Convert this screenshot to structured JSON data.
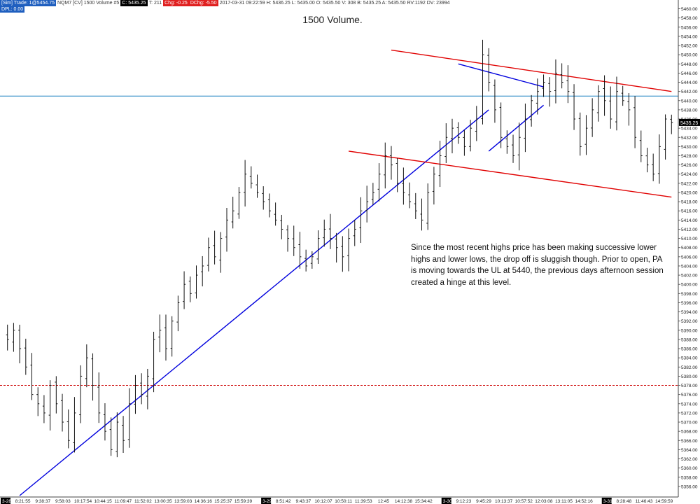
{
  "header": {
    "segments": [
      {
        "text": "[Sim] Trade: 1@5454.75",
        "color": "blue"
      },
      {
        "text": "NQM7 [CV]  1500 Volume  #5",
        "color": "white"
      },
      {
        "text": "C: 5435.25",
        "color": "black"
      },
      {
        "text": "T: 211",
        "color": "white"
      },
      {
        "text": "Chg: -0.25",
        "color": "red"
      },
      {
        "text": "DChg: -5.50",
        "color": "red"
      },
      {
        "text": "2017-03-31 09:22:59 H: 5436.25 L: 5435.00 O: 5435.50 V: 308 B: 5435.25 A: 5435.50 RV:1192 DV: 23994",
        "color": "white"
      }
    ],
    "line2": "DPL: 0.00"
  },
  "title": "1500 Volume.",
  "annotation": "Since the most recent highs price has been making successive lower highs and lower lows, the drop off is sluggish though.  Prior to open, PA is moving towards the UL at 5440, the previous days afternoon session created a hinge at this level.",
  "colors": {
    "up": "#111111",
    "trendline": "#0000dd",
    "channel": "#e00000",
    "level": "#1a80c0",
    "stop": "#cc0000"
  },
  "chart_data": {
    "type": "ohlc",
    "symbol": "NQM7",
    "ylim": [
      5354,
      5461
    ],
    "y_ticks": [
      5356,
      5358,
      5360,
      5362,
      5364,
      5366,
      5368,
      5370,
      5372,
      5374,
      5376,
      5378,
      5380,
      5382,
      5384,
      5386,
      5388,
      5390,
      5392,
      5394,
      5396,
      5398,
      5400,
      5402,
      5404,
      5406,
      5408,
      5410,
      5412,
      5414,
      5416,
      5418,
      5420,
      5422,
      5424,
      5426,
      5428,
      5430,
      5432,
      5434,
      5436,
      5438,
      5440,
      5442,
      5444,
      5446,
      5448,
      5450,
      5452,
      5454,
      5456,
      5458,
      5460
    ],
    "last_price": "5435.25",
    "x_labels": [
      "3-28",
      "8:21:55",
      "9:38:37",
      "9:58:03",
      "10:17:54",
      "10:44:15",
      "11:09:47",
      "11:52:02",
      "13:00:35",
      "13:59:03",
      "14:36:16",
      "15:25:37",
      "15:59:39",
      "3-29",
      "8:51:42",
      "9:43:37",
      "10:12:07",
      "10:50:11",
      "11:39:53",
      "12:45",
      "14:12:38",
      "15:34:42",
      "3-30",
      "9:12:23",
      "9:45:29",
      "10:13:37",
      "10:57:52",
      "12:03:08",
      "13:11:05",
      "14:52:16",
      "3-31",
      "8:28:48",
      "11:46:43",
      "14:59:59"
    ],
    "date_markers": [
      "3-28",
      "3-29",
      "3-30",
      "3-31"
    ],
    "closes": [
      5388,
      5390,
      5386,
      5382,
      5376,
      5374,
      5372,
      5378,
      5374,
      5370,
      5366,
      5372,
      5380,
      5384,
      5378,
      5372,
      5368,
      5364,
      5370,
      5366,
      5374,
      5378,
      5376,
      5380,
      5388,
      5390,
      5386,
      5392,
      5396,
      5400,
      5398,
      5402,
      5404,
      5408,
      5406,
      5410,
      5414,
      5416,
      5420,
      5424,
      5422,
      5420,
      5418,
      5416,
      5414,
      5412,
      5410,
      5408,
      5406,
      5404,
      5406,
      5410,
      5412,
      5410,
      5408,
      5406,
      5410,
      5412,
      5416,
      5418,
      5420,
      5424,
      5428,
      5426,
      5422,
      5420,
      5418,
      5416,
      5414,
      5420,
      5424,
      5428,
      5432,
      5434,
      5432,
      5430,
      5434,
      5436,
      5450,
      5444,
      5438,
      5432,
      5430,
      5428,
      5432,
      5436,
      5440,
      5442,
      5444,
      5442,
      5446,
      5444,
      5442,
      5436,
      5430,
      5434,
      5438,
      5442,
      5440,
      5436,
      5442,
      5440,
      5438,
      5432,
      5428,
      5426,
      5424,
      5430,
      5436,
      5435.25
    ],
    "hlines": [
      {
        "price": 5441,
        "style": "solid"
      },
      {
        "price": 5378,
        "style": "dashed"
      }
    ],
    "trendlines": [
      {
        "kind": "support",
        "from": [
          2,
          5354
        ],
        "to": [
          79,
          5438
        ]
      },
      {
        "kind": "channel-upper",
        "from": [
          63,
          5451
        ],
        "to": [
          109,
          5442
        ]
      },
      {
        "kind": "channel-lower",
        "from": [
          56,
          5429
        ],
        "to": [
          109,
          5419
        ]
      },
      {
        "kind": "wedge-upper",
        "from": [
          74,
          5448
        ],
        "to": [
          88,
          5443
        ]
      },
      {
        "kind": "wedge-lower",
        "from": [
          79,
          5429
        ],
        "to": [
          88,
          5439
        ]
      }
    ]
  }
}
